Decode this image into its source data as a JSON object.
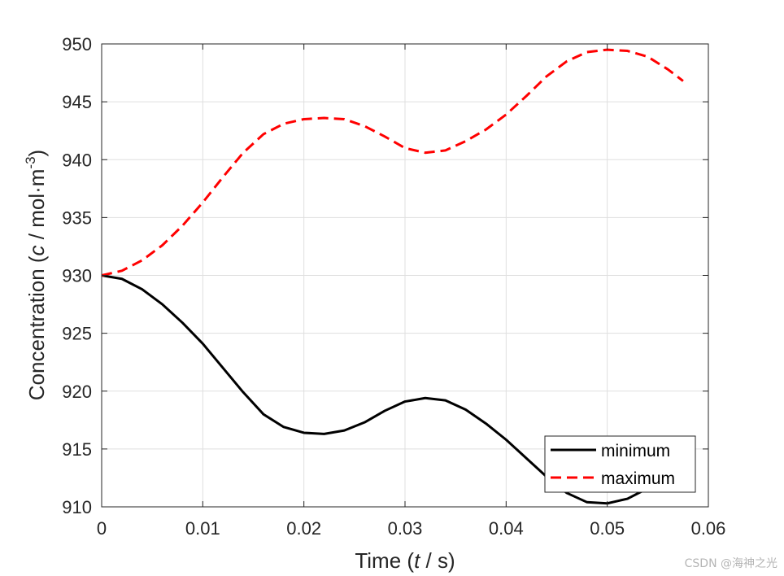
{
  "chart_data": {
    "type": "line",
    "xlabel_prefix": "Time (",
    "xlabel_var": "t",
    "xlabel_suffix": " / s)",
    "ylabel_prefix": "Concentration (",
    "ylabel_var": "c",
    "ylabel_mid": " / mol·m",
    "ylabel_sup": "-3",
    "ylabel_suffix": ")",
    "xlim": [
      0,
      0.06
    ],
    "ylim": [
      910,
      950
    ],
    "xticks": [
      0,
      0.01,
      0.02,
      0.03,
      0.04,
      0.05,
      0.06
    ],
    "xtick_labels": [
      "0",
      "0.01",
      "0.02",
      "0.03",
      "0.04",
      "0.05",
      "0.06"
    ],
    "yticks": [
      910,
      915,
      920,
      925,
      930,
      935,
      940,
      945,
      950
    ],
    "ytick_labels": [
      "910",
      "915",
      "920",
      "925",
      "930",
      "935",
      "940",
      "945",
      "950"
    ],
    "grid": true,
    "legend_position": "bottom-right",
    "series": [
      {
        "name": "minimum",
        "color": "#000000",
        "style": "solid",
        "x": [
          0,
          0.002,
          0.004,
          0.006,
          0.008,
          0.01,
          0.012,
          0.014,
          0.016,
          0.018,
          0.02,
          0.022,
          0.024,
          0.026,
          0.028,
          0.03,
          0.032,
          0.034,
          0.036,
          0.038,
          0.04,
          0.042,
          0.044,
          0.046,
          0.048,
          0.05,
          0.052,
          0.054,
          0.055
        ],
        "y": [
          930.0,
          929.7,
          928.8,
          927.5,
          925.9,
          924.1,
          922.0,
          919.9,
          918.0,
          916.9,
          916.4,
          916.3,
          916.6,
          917.3,
          918.3,
          919.1,
          919.4,
          919.2,
          918.4,
          917.2,
          915.8,
          914.2,
          912.6,
          911.2,
          910.4,
          910.3,
          910.7,
          911.6,
          912.2
        ]
      },
      {
        "name": "maximum",
        "color": "#ff0000",
        "style": "dashed",
        "x": [
          0,
          0.002,
          0.004,
          0.006,
          0.008,
          0.01,
          0.012,
          0.014,
          0.016,
          0.018,
          0.02,
          0.022,
          0.024,
          0.026,
          0.028,
          0.03,
          0.032,
          0.034,
          0.036,
          0.038,
          0.04,
          0.042,
          0.044,
          0.046,
          0.048,
          0.05,
          0.052,
          0.054,
          0.056,
          0.0575
        ],
        "y": [
          930.0,
          930.4,
          931.3,
          932.6,
          934.3,
          936.3,
          938.5,
          940.6,
          942.2,
          943.1,
          943.5,
          943.6,
          943.5,
          942.9,
          942.0,
          941.0,
          940.6,
          940.8,
          941.6,
          942.6,
          943.9,
          945.5,
          947.2,
          948.5,
          949.3,
          949.5,
          949.4,
          948.9,
          947.8,
          946.8
        ]
      }
    ]
  },
  "watermark": "CSDN @海神之光"
}
